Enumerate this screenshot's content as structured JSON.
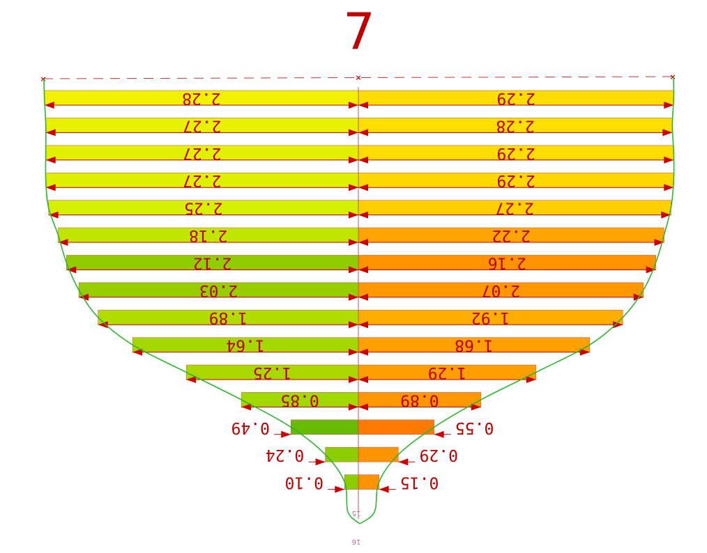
{
  "title": "7",
  "footer_label": "16",
  "centerline_label": "15",
  "colors": {
    "hull": "#2fb52f",
    "dimension": "#cc0000",
    "reference_line": "#cc3333",
    "left_bar_colors": [
      "#f2f200",
      "#e8f200",
      "#e0f000",
      "#dcf000",
      "#d4ef00",
      "#c0e600",
      "#8fcc00",
      "#96cd00",
      "#b0dc00",
      "#a4d800",
      "#a8d800",
      "#a0d800",
      "#66bb00",
      "#8ccd00",
      "#8ccd00"
    ],
    "right_bar_colors": [
      "#ffdd00",
      "#ffde00",
      "#ffdc00",
      "#ffd800",
      "#ffd000",
      "#ffa400",
      "#ff9400",
      "#ff9800",
      "#ffae00",
      "#ffa000",
      "#ff9e00",
      "#ff9800",
      "#ff7a00",
      "#ff9400",
      "#ff9400"
    ]
  },
  "chart_data": {
    "type": "bar",
    "title": "7",
    "orientation": "horizontal, mirrored about centerline, rendered upside-down",
    "stations": 15,
    "left_values": [
      2.28,
      2.27,
      2.27,
      2.27,
      2.25,
      2.18,
      2.12,
      2.03,
      1.89,
      1.64,
      1.25,
      0.85,
      0.49,
      0.24,
      0.1
    ],
    "right_values": [
      2.29,
      2.28,
      2.29,
      2.29,
      2.27,
      2.22,
      2.16,
      2.07,
      1.92,
      1.68,
      1.29,
      0.89,
      0.55,
      0.29,
      0.15
    ],
    "left_labels": [
      "2.28",
      "2.27",
      "2.27",
      "2.27",
      "2.25",
      "2.18",
      "2.12",
      "2.03",
      "1.89",
      "1.64",
      "1.25",
      "0.85",
      "0.49",
      "0.24",
      "0.10"
    ],
    "right_labels": [
      "2.29",
      "2.28",
      "2.29",
      "2.29",
      "2.27",
      "2.22",
      "2.16",
      "2.07",
      "1.92",
      "1.68",
      "1.29",
      "0.89",
      "0.55",
      "0.29",
      "0.15"
    ],
    "grid": false,
    "legend": "none"
  }
}
